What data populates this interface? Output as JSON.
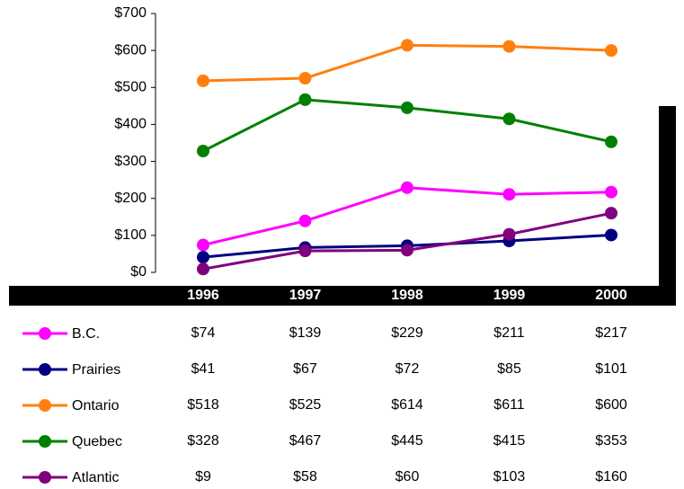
{
  "chart_data": {
    "type": "line",
    "categories": [
      "1996",
      "1997",
      "1998",
      "1999",
      "2000"
    ],
    "ylim": [
      0,
      700
    ],
    "yticks": [
      {
        "value": 0,
        "label": "$0"
      },
      {
        "value": 100,
        "label": "$100"
      },
      {
        "value": 200,
        "label": "$200"
      },
      {
        "value": 300,
        "label": "$300"
      },
      {
        "value": 400,
        "label": "$400"
      },
      {
        "value": 500,
        "label": "$500"
      },
      {
        "value": 600,
        "label": "$600"
      },
      {
        "value": 700,
        "label": "$700"
      }
    ],
    "grid": false,
    "series": [
      {
        "name": "B.C.",
        "color": "#ff00ff",
        "values": [
          74,
          139,
          229,
          211,
          217
        ],
        "value_labels": [
          "$74",
          "$139",
          "$229",
          "$211",
          "$217"
        ]
      },
      {
        "name": "Prairies",
        "color": "#000080",
        "values": [
          41,
          67,
          72,
          85,
          101
        ],
        "value_labels": [
          "$41",
          "$67",
          "$72",
          "$85",
          "$101"
        ]
      },
      {
        "name": "Ontario",
        "color": "#ff7f0e",
        "values": [
          518,
          525,
          614,
          611,
          600
        ],
        "value_labels": [
          "$518",
          "$525",
          "$614",
          "$611",
          "$600"
        ]
      },
      {
        "name": "Quebec",
        "color": "#008000",
        "values": [
          328,
          467,
          445,
          415,
          353
        ],
        "value_labels": [
          "$328",
          "$467",
          "$445",
          "$415",
          "$353"
        ]
      },
      {
        "name": "Atlantic",
        "color": "#800080",
        "values": [
          9,
          58,
          60,
          103,
          160
        ],
        "value_labels": [
          "$9",
          "$58",
          "$60",
          "$103",
          "$160"
        ]
      }
    ]
  }
}
